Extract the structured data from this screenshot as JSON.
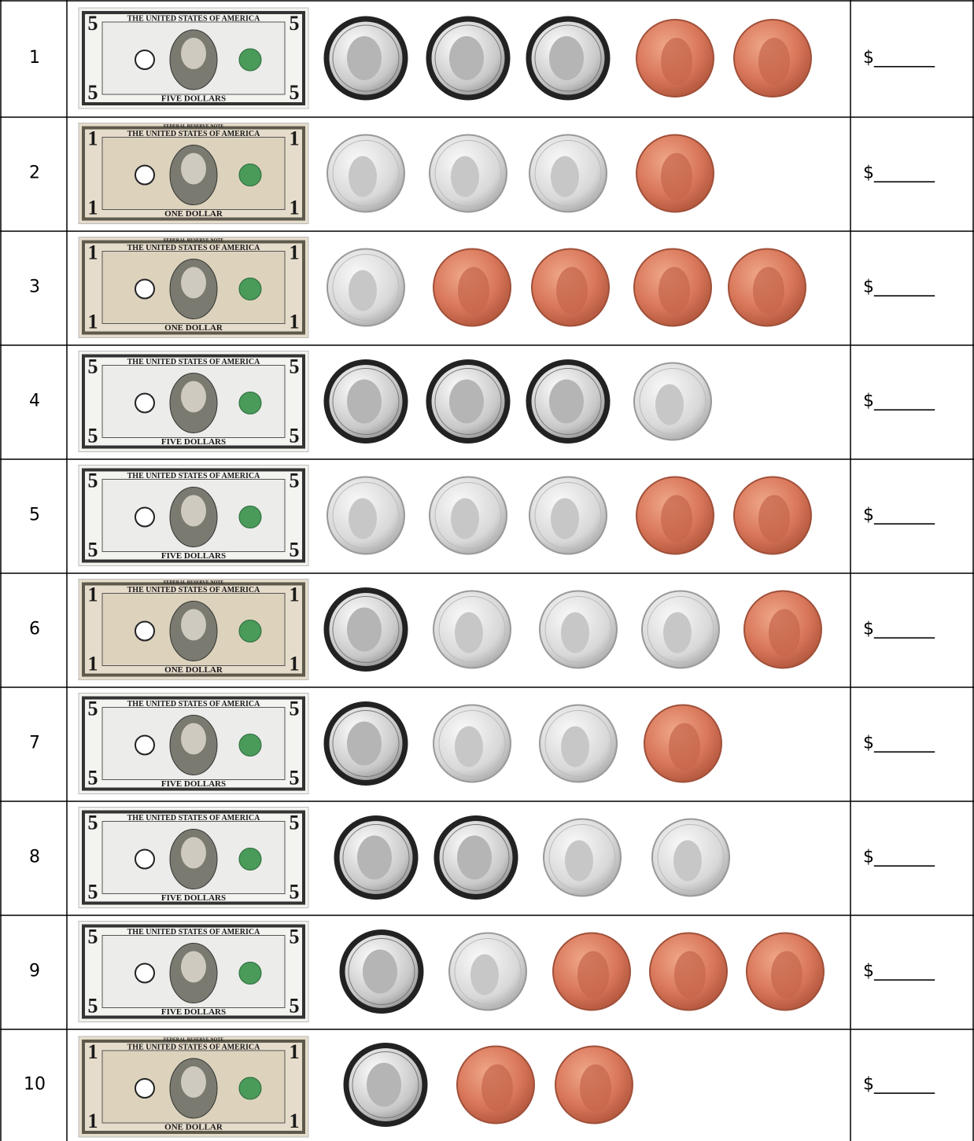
{
  "rows": [
    {
      "number": "1",
      "answer": "$_______"
    },
    {
      "number": "2",
      "answer": "$_______"
    },
    {
      "number": "3",
      "answer": "$_______"
    },
    {
      "number": "4",
      "answer": "$_______"
    },
    {
      "number": "5",
      "answer": "$_______"
    },
    {
      "number": "6",
      "answer": "$_______"
    },
    {
      "number": "7",
      "answer": "$_______"
    },
    {
      "number": "8",
      "answer": "$_______"
    },
    {
      "number": "9",
      "answer": "$_______"
    },
    {
      "number": "10",
      "answer": "$_______"
    }
  ],
  "bills": {
    "five": {
      "heading": "THE UNITED STATES OF AMERICA",
      "denomination": "FIVE DOLLARS",
      "numeral": "5"
    },
    "one": {
      "heading": "THE UNITED STATES OF AMERICA",
      "denomination": "ONE DOLLAR",
      "numeral": "1",
      "note": "FEDERAL RESERVE NOTE"
    }
  }
}
